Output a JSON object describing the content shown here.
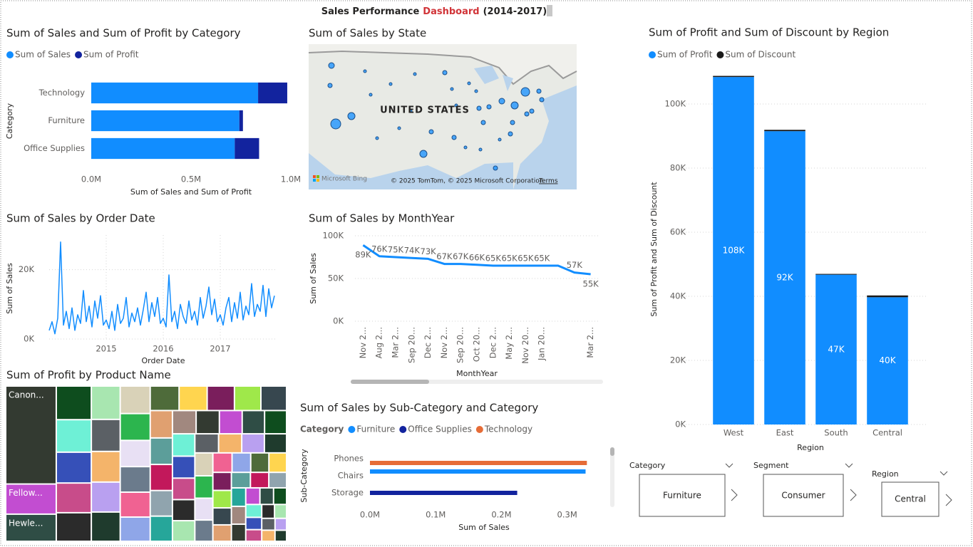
{
  "page_title": {
    "lead": "Sales Performance",
    "highlight": "Dashboard",
    "tail": "(2014-2017)"
  },
  "chart_data": [
    {
      "type": "bar",
      "orientation": "horizontal",
      "stacked": true,
      "grid": false,
      "title": "Sum of Sales and Sum of Profit by Category",
      "x_label": "Sum of Sales and Sum of Profit",
      "y_label": "Category",
      "categories": [
        "Technology",
        "Furniture",
        "Office Supplies"
      ],
      "series": [
        {
          "name": "Sum of Sales",
          "color": "#118DFF",
          "values": [
            0.836,
            0.742,
            0.719
          ]
        },
        {
          "name": "Sum of Profit",
          "color": "#12239E",
          "values": [
            0.146,
            0.018,
            0.122
          ]
        }
      ],
      "xlim": [
        0,
        1.0
      ],
      "xticks": [
        {
          "value": 0,
          "label": "0.0M"
        },
        {
          "value": 0.5,
          "label": "0.5M"
        },
        {
          "value": 1.0,
          "label": "1.0M"
        }
      ]
    },
    {
      "type": "map",
      "title": "Sum of Sales by State",
      "label": "UNITED STATES",
      "logo": "Microsoft Bing",
      "attribution": "© 2025 TomTom, © 2025 Microsoft Corporation",
      "terms": "Terms"
    },
    {
      "type": "line",
      "title": "Sum of Sales by Order Date",
      "x_label": "Order Date",
      "y_label": "Sum of Sales",
      "color": "#118DFF",
      "grid": true,
      "x": [
        2014.0,
        2014.05,
        2014.1,
        2014.15,
        2014.2,
        2014.25,
        2014.3,
        2014.35,
        2014.4,
        2014.45,
        2014.5,
        2014.55,
        2014.6,
        2014.65,
        2014.7,
        2014.75,
        2014.8,
        2014.85,
        2014.9,
        2014.95,
        2015.0,
        2015.05,
        2015.1,
        2015.15,
        2015.2,
        2015.25,
        2015.3,
        2015.35,
        2015.4,
        2015.45,
        2015.5,
        2015.55,
        2015.6,
        2015.65,
        2015.7,
        2015.75,
        2015.8,
        2015.85,
        2015.9,
        2015.95,
        2016.0,
        2016.05,
        2016.1,
        2016.15,
        2016.2,
        2016.25,
        2016.3,
        2016.35,
        2016.4,
        2016.45,
        2016.5,
        2016.55,
        2016.6,
        2016.65,
        2016.7,
        2016.75,
        2016.8,
        2016.85,
        2016.9,
        2016.95,
        2017.0,
        2017.05,
        2017.1,
        2017.15,
        2017.2,
        2017.25,
        2017.3,
        2017.35,
        2017.4,
        2017.45,
        2017.5,
        2017.55,
        2017.6,
        2017.65,
        2017.7,
        2017.75,
        2017.8,
        2017.85,
        2017.9,
        2017.95
      ],
      "values": [
        2500,
        5000,
        1500,
        6000,
        28000,
        4000,
        8000,
        3000,
        9000,
        2500,
        7000,
        4500,
        14000,
        5000,
        9500,
        3500,
        11000,
        6000,
        12500,
        4000,
        5500,
        3000,
        8000,
        2500,
        10000,
        4500,
        6000,
        12000,
        3500,
        7500,
        5000,
        9000,
        4000,
        8500,
        13500,
        5000,
        10500,
        6500,
        12000,
        4500,
        6000,
        3500,
        18500,
        5000,
        8000,
        3000,
        10000,
        6500,
        4500,
        11000,
        5500,
        8000,
        4000,
        12000,
        6000,
        9500,
        15000,
        7000,
        11500,
        5000,
        7000,
        4000,
        9000,
        12000,
        5000,
        10500,
        6000,
        13500,
        5500,
        9500,
        7000,
        16000,
        6500,
        10000,
        8000,
        15500,
        6500,
        14500,
        9000,
        12500
      ],
      "xlim": [
        2014.0,
        2018.0
      ],
      "xticks": [
        2015,
        2016,
        2017
      ],
      "ylim": [
        0,
        30000
      ],
      "yticks": [
        {
          "value": 0,
          "label": "0K"
        },
        {
          "value": 20000,
          "label": "20K"
        }
      ]
    },
    {
      "type": "line",
      "title": "Sum of Sales by MonthYear",
      "x_label": "MonthYear",
      "y_label": "Sum of Sales",
      "color": "#118DFF",
      "grid": true,
      "categories": [
        "Nov 2...",
        "Aug 2...",
        "Mar 2...",
        "Sep 20...",
        "Dec 2...",
        "Nov 2...",
        "Sep 20...",
        "Oct 20...",
        "Dec 2...",
        "May 2...",
        "Nov 20...",
        "Jan 20...",
        null,
        null,
        "Mar 2..."
      ],
      "values": [
        89000,
        76000,
        75000,
        74000,
        73000,
        67000,
        67000,
        66000,
        65000,
        65000,
        65000,
        65000,
        65000,
        57000,
        55000
      ],
      "value_labels": [
        "89K",
        "76K",
        "75K",
        "74K",
        "73K",
        "67K",
        "67K",
        "66K",
        "65K",
        "65K",
        "65K",
        "65K",
        null,
        "57K",
        "55K"
      ],
      "ylim": [
        0,
        100000
      ],
      "yticks": [
        {
          "value": 0,
          "label": "0K"
        },
        {
          "value": 50000,
          "label": "50K"
        },
        {
          "value": 100000,
          "label": "100K"
        }
      ]
    },
    {
      "type": "bar",
      "orientation": "vertical",
      "stacked": true,
      "grid": true,
      "title": "Sum of Profit and Sum of Discount by Region",
      "x_label": "Region",
      "y_label": "Sum of Profit and Sum of Discount",
      "categories": [
        "West",
        "East",
        "South",
        "Central"
      ],
      "series": [
        {
          "name": "Sum of Profit",
          "color": "#118DFF",
          "values": [
            108418,
            91523,
            46749,
            39706
          ],
          "value_labels": [
            "108K",
            "92K",
            "47K",
            "40K"
          ]
        },
        {
          "name": "Sum of Discount",
          "color": "#1A1A1A",
          "values": [
            350,
            414,
            238,
            558
          ]
        }
      ],
      "ylim": [
        0,
        110000
      ],
      "yticks": [
        {
          "value": 0,
          "label": "0K"
        },
        {
          "value": 20000,
          "label": "20K"
        },
        {
          "value": 40000,
          "label": "40K"
        },
        {
          "value": 60000,
          "label": "60K"
        },
        {
          "value": 80000,
          "label": "80K"
        },
        {
          "value": 100000,
          "label": "100K"
        }
      ]
    },
    {
      "type": "treemap",
      "title": "Sum of Profit by Product Name",
      "labels": [
        "Canon...",
        "Fellow...",
        "Hewle...",
        null,
        null,
        null,
        null,
        null,
        null,
        null,
        null,
        null,
        null,
        null,
        null,
        null,
        null,
        null,
        null,
        null,
        null,
        null,
        null,
        null,
        null,
        null,
        null,
        null,
        null,
        null,
        null,
        null,
        null,
        null,
        null,
        null,
        null,
        null,
        null,
        null,
        null,
        null,
        null,
        null,
        null,
        null,
        null,
        null,
        null,
        null,
        null,
        null,
        null,
        null,
        null,
        null,
        null,
        null,
        null,
        null,
        null,
        null,
        null,
        null,
        null,
        null,
        null,
        null,
        null,
        null,
        null,
        null,
        null
      ],
      "values": [
        25200,
        7753,
        6984,
        6000,
        5800,
        5500,
        5300,
        5100,
        4900,
        4700,
        4500,
        4400,
        4300,
        4200,
        4100,
        4000,
        3900,
        3800,
        3700,
        3600,
        3500,
        3400,
        3300,
        3200,
        3100,
        3000,
        2950,
        2900,
        2850,
        2800,
        2750,
        2700,
        2650,
        2600,
        2550,
        2500,
        2450,
        2400,
        2350,
        2300,
        2250,
        2200,
        2150,
        2100,
        2050,
        2000,
        1950,
        1900,
        1850,
        1800,
        1750,
        1700,
        1650,
        1600,
        1550,
        1500,
        1450,
        1400,
        1350,
        1300,
        1250,
        1200,
        1150,
        1100,
        1050,
        1000,
        950,
        900,
        850,
        800,
        750,
        700,
        650
      ],
      "colors": [
        "#333A31",
        "#C24DD1",
        "#2F4D45",
        "#0E4D1E",
        "#6EF0D6",
        "#3650B8",
        "#C84C8A",
        "#2B2B2B",
        "#A8E6B0",
        "#5B6065",
        "#F4B46A",
        "#B9A0F0",
        "#1F3B2D",
        "#D9D2B8",
        "#2CB54E",
        "#E8E0F4",
        "#6B7B8C",
        "#F06292",
        "#8FA6E8",
        "#4E6B3A",
        "#FFD54F",
        "#7A1E5C",
        "#9FE84A",
        "#37474F",
        "#E0A070",
        "#5C9E9A",
        "#C2185B",
        "#90A4AE",
        "#26A69A",
        "#A1887F"
      ]
    },
    {
      "type": "bar",
      "orientation": "horizontal",
      "stacked": false,
      "grid": false,
      "title": "Sum of Sales by Sub-Category and Category",
      "x_label": "Sum of Sales",
      "y_label": "Sub-Category",
      "legend_title": "Category",
      "categories": [
        "Phones",
        "Chairs",
        "Storage"
      ],
      "series": [
        {
          "name": "Furniture",
          "color": "#118DFF",
          "values": [
            null,
            0.328,
            null
          ]
        },
        {
          "name": "Office Supplies",
          "color": "#12239E",
          "values": [
            null,
            null,
            0.224
          ]
        },
        {
          "name": "Technology",
          "color": "#E66C37",
          "values": [
            0.33,
            null,
            null
          ]
        }
      ],
      "xlim": [
        0,
        0.36
      ],
      "xticks": [
        {
          "value": 0,
          "label": "0.0M"
        },
        {
          "value": 0.1,
          "label": "0.1M"
        },
        {
          "value": 0.2,
          "label": "0.2M"
        },
        {
          "value": 0.3,
          "label": "0.3M"
        }
      ]
    }
  ],
  "slicers": [
    {
      "title": "Category",
      "value": "Furniture"
    },
    {
      "title": "Segment",
      "value": "Consumer"
    },
    {
      "title": "Region",
      "value": "Central"
    }
  ]
}
